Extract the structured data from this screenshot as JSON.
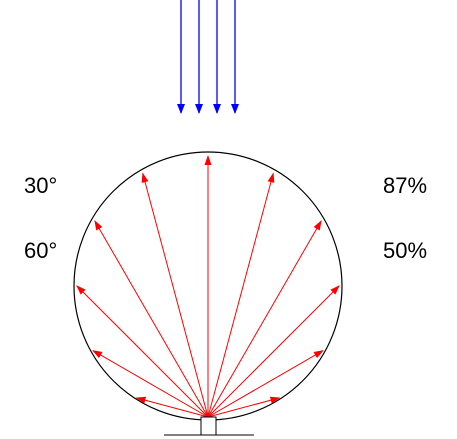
{
  "labels": {
    "angle_30": "30°",
    "angle_60": "60°",
    "percent_87": "87%",
    "percent_50": "50%"
  },
  "colors": {
    "incident_rays": "#0000ff",
    "scattered_rays": "#ff0000",
    "sphere_outline": "#000000",
    "background": "#ffffff"
  },
  "diagram": {
    "incident_ray_count": 4,
    "scattered_ray_angles_deg": [
      -75,
      -60,
      -45,
      -30,
      -15,
      0,
      15,
      30,
      45,
      60,
      75
    ]
  }
}
